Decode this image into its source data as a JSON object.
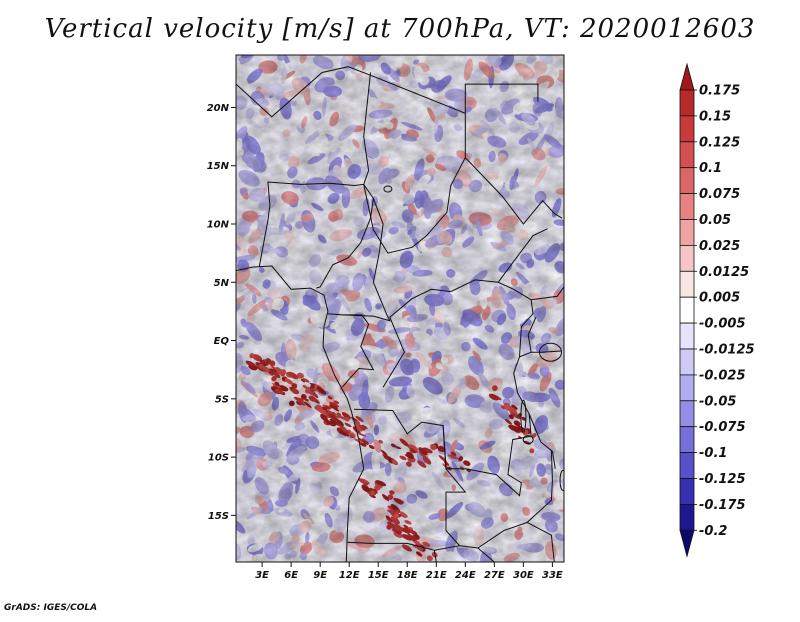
{
  "title": "Vertical velocity [m/s] at 700hPa, VT: 2020012603",
  "map": {
    "lat_labels": [
      "20N",
      "15N",
      "10N",
      "5N",
      "EQ",
      "5S",
      "10S",
      "15S"
    ],
    "lon_labels": [
      "3E",
      "6E",
      "9E",
      "12E",
      "15E",
      "18E",
      "21E",
      "24E",
      "27E",
      "30E",
      "33E"
    ],
    "lat_range": [
      -19,
      24.5
    ],
    "lon_range": [
      0.3,
      34.2
    ],
    "field": "vertical-velocity",
    "units": "m/s"
  },
  "colorbar": {
    "labels": [
      "0.175",
      "0.15",
      "0.125",
      "0.1",
      "0.075",
      "0.05",
      "0.025",
      "0.0125",
      "0.005",
      "-0.005",
      "-0.0125",
      "-0.025",
      "-0.05",
      "-0.075",
      "-0.1",
      "-0.125",
      "-0.175",
      "-0.2"
    ],
    "colors": [
      "#a01818",
      "#b82a2a",
      "#c93b3b",
      "#d45050",
      "#dd6767",
      "#e68282",
      "#efa3a3",
      "#f6c6c6",
      "#fbe6e6",
      "#ffffff",
      "#e6e4fb",
      "#cfcaf5",
      "#b3acef",
      "#958de6",
      "#7670da",
      "#5651c8",
      "#3531b2",
      "#1d1890",
      "#0c0870"
    ]
  },
  "credit": "GrADS: IGES/COLA"
}
